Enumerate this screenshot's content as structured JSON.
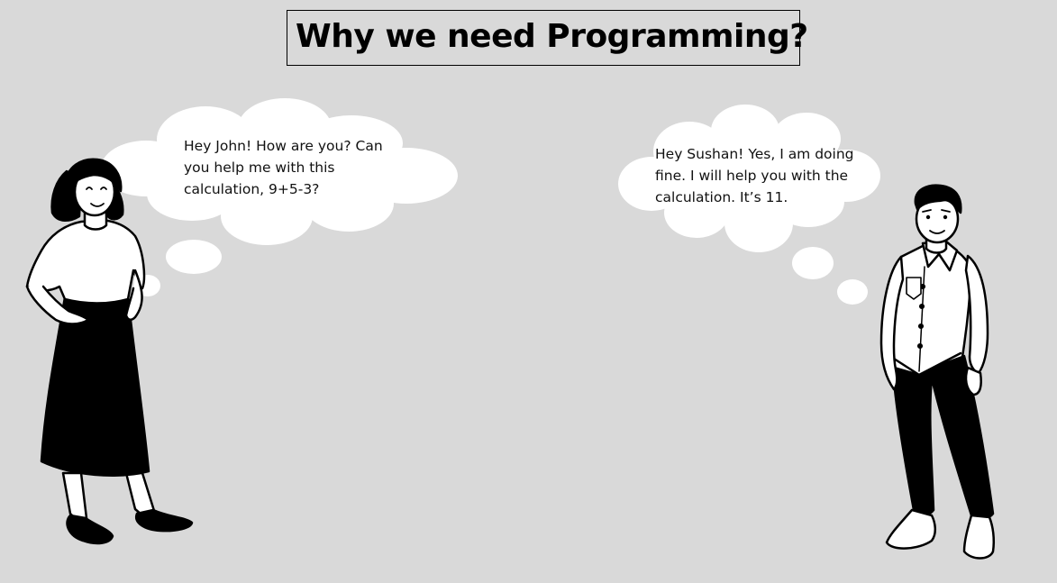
{
  "title": "Why we need Programming?",
  "left_speech": {
    "lines": [
      "Hey John! How are you? Can",
      "you help me with this",
      "calculation, 9+5-3?"
    ]
  },
  "right_speech": {
    "lines": [
      "Hey Sushan! Yes, I am doing",
      "fine. I will help you with the",
      "calculation. It’s 11."
    ]
  },
  "colors": {
    "background": "#d9d9d9",
    "ink": "#000000",
    "paper": "#ffffff"
  }
}
